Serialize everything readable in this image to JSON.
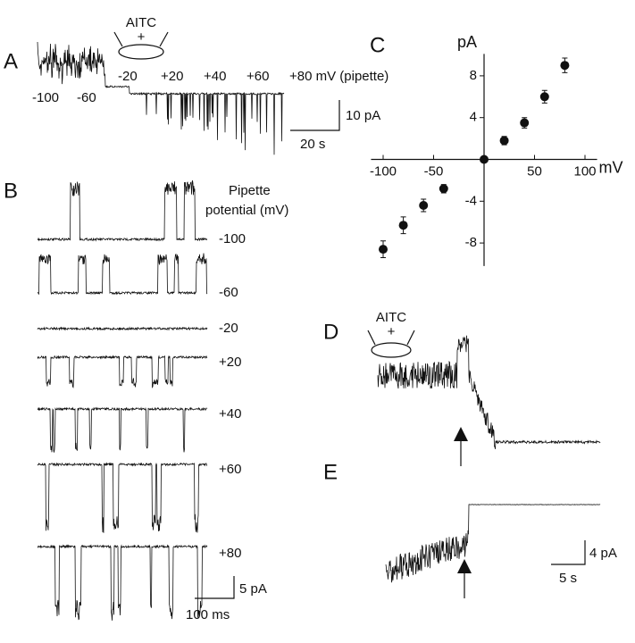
{
  "chart_data": {
    "type": "scatter",
    "x_label": "mV",
    "y_label": "pA",
    "x": [
      -100,
      -80,
      -60,
      -40,
      0,
      20,
      40,
      60,
      80
    ],
    "series": [
      {
        "values": [
          -8.6,
          -6.3,
          -4.4,
          -2.8,
          0,
          1.8,
          3.5,
          6.0,
          9.0
        ],
        "errors": [
          0.8,
          0.8,
          0.6,
          0.4,
          0,
          0.4,
          0.5,
          0.6,
          0.7
        ],
        "color": "#111111"
      }
    ],
    "xlim": [
      -112,
      112
    ],
    "ylim": [
      -10.2,
      10.1
    ],
    "xticks": [
      -100,
      -50,
      50,
      100
    ],
    "yticks": [
      -8,
      -4,
      4,
      8
    ]
  },
  "panel_labels": [
    "A",
    "B",
    "C",
    "D",
    "E"
  ],
  "panel_a": {
    "stimulus": "AITC",
    "plus": "+",
    "potential_labels": [
      "-100",
      "-60",
      "-20",
      "+20",
      "+40",
      "+60",
      "+80 mV (pipette)"
    ],
    "scale_y": "10 pA",
    "scale_x": "20 s"
  },
  "panel_b": {
    "heading": [
      "Pipette",
      "potential (mV)"
    ],
    "trace_labels": [
      "-100",
      "-60",
      "-20",
      "+20",
      "+40",
      "+60",
      "+80"
    ],
    "scale_y": "5 pA",
    "scale_x": "100 ms"
  },
  "panel_d": {
    "stimulus": "AITC",
    "plus": "+"
  },
  "panel_e": {
    "scale_y": "4 pA",
    "scale_x": "5 s"
  }
}
